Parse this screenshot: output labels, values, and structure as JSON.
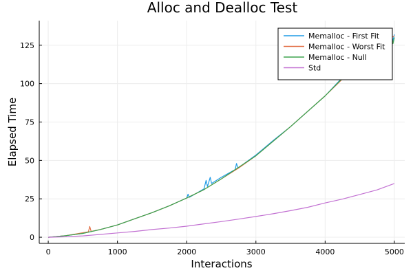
{
  "chart_data": {
    "type": "line",
    "title": "Alloc and Dealloc Test",
    "xlabel": "Interactions",
    "ylabel": "Elapsed Time",
    "xlim": [
      -130,
      5150
    ],
    "ylim": [
      -4,
      141
    ],
    "xticks": [
      0,
      1000,
      2000,
      3000,
      4000,
      5000
    ],
    "yticks": [
      0,
      25,
      50,
      75,
      100,
      125
    ],
    "grid": true,
    "legend_position": "top-right",
    "series": [
      {
        "name": "Memalloc - First Fit",
        "color": "#1f9be6",
        "x": [
          0,
          250,
          500,
          750,
          1000,
          1250,
          1500,
          1750,
          2000,
          2020,
          2040,
          2250,
          2280,
          2300,
          2340,
          2360,
          2500,
          2700,
          2720,
          2740,
          3000,
          3250,
          3500,
          3750,
          4000,
          4250,
          4500,
          4750,
          4950,
          4980,
          5000
        ],
        "y": [
          0,
          1,
          2.5,
          5,
          8,
          12,
          16,
          20.5,
          25.5,
          28,
          26,
          31.5,
          37,
          33,
          39,
          35,
          39,
          44,
          48,
          45,
          53.5,
          63,
          72,
          82,
          92,
          104,
          113,
          124,
          133,
          128,
          132
        ]
      },
      {
        "name": "Memalloc - Worst Fit",
        "color": "#e26f46",
        "x": [
          0,
          250,
          580,
          600,
          620,
          750,
          1000,
          1250,
          1500,
          1750,
          2000,
          2250,
          2500,
          2750,
          3000,
          3250,
          3500,
          3750,
          4000,
          4250,
          4500,
          4750,
          5000
        ],
        "y": [
          0,
          1,
          3.5,
          7,
          3.8,
          5,
          8,
          12,
          16,
          20.5,
          25.5,
          31,
          38,
          45,
          53,
          62.5,
          72,
          82,
          92,
          103,
          113,
          124,
          131
        ]
      },
      {
        "name": "Memalloc - Null",
        "color": "#3da44d",
        "x": [
          0,
          250,
          500,
          750,
          1000,
          1250,
          1500,
          1750,
          2000,
          2250,
          2500,
          2750,
          3000,
          3250,
          3500,
          3750,
          4000,
          4250,
          4500,
          4750,
          4950,
          4980,
          5000
        ],
        "y": [
          0,
          1,
          2.5,
          5,
          8,
          12,
          16,
          20.5,
          25.5,
          31,
          38,
          45.5,
          53,
          62.5,
          72,
          82,
          92,
          103.5,
          113,
          124,
          135,
          126,
          130
        ]
      },
      {
        "name": "Std",
        "color": "#c271d2",
        "x": [
          0,
          250,
          500,
          750,
          1000,
          1250,
          1500,
          1750,
          2000,
          2250,
          2500,
          2750,
          3000,
          3250,
          3500,
          3750,
          4000,
          4250,
          4500,
          4750,
          5000
        ],
        "y": [
          0,
          0.3,
          0.9,
          1.8,
          2.8,
          3.8,
          5,
          6,
          7.2,
          8.7,
          10.2,
          11.8,
          13.5,
          15.3,
          17.3,
          19.5,
          22.3,
          24.8,
          27.8,
          30.8,
          35
        ]
      }
    ]
  }
}
